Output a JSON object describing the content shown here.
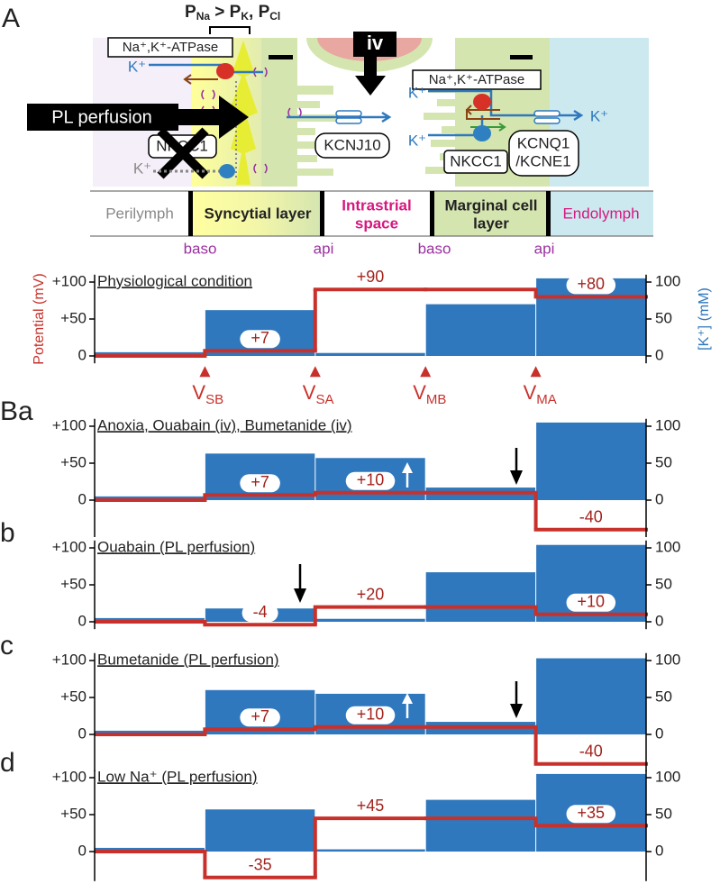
{
  "diagram": {
    "panel_label": "A",
    "permeability": [
      "P",
      "Na",
      " > P",
      "K",
      ", P",
      "Cl"
    ],
    "left_atpase": "Na⁺,K⁺-ATPase",
    "left_k": "K⁺",
    "pl_perfusion": "PL perfusion",
    "left_nkcc1": "NKCC1",
    "left_k_nkcc1": "K⁺",
    "iv": "iv",
    "kcnj10": "KCNJ10",
    "right_atpase": "Na⁺,K⁺-ATPase",
    "right_k_atpase": "K⁺",
    "right_k_nkcc1": "K⁺",
    "right_nkcc1": "NKCC1",
    "kcnq1": [
      "KCNQ1",
      "/KCNE1"
    ],
    "right_k_out": "K⁺",
    "compartments": [
      [
        "Perilymph"
      ],
      [
        "Syncytial layer"
      ],
      [
        "Intrastrial",
        "space"
      ],
      [
        "Marginal cell",
        "layer"
      ],
      [
        "Endolymph"
      ]
    ],
    "membranes": [
      "baso",
      "api",
      "baso",
      "api"
    ]
  },
  "chart_data": [
    {
      "type": "combo",
      "title": "Physiological condition",
      "ylabel": "Potential (mV)",
      "y2label": "[K⁺] (mM)",
      "ylim": [
        -10,
        110
      ],
      "yticks": [
        0,
        {
          "value": 50,
          "label": "+50"
        },
        {
          "value": 100,
          "label": "+100"
        }
      ],
      "y2lim": [
        -10,
        110
      ],
      "y2ticks": [
        0,
        50,
        100
      ],
      "markers": [
        [
          "V",
          "SB"
        ],
        [
          "V",
          "SA"
        ],
        [
          "V",
          "MB"
        ],
        [
          "V",
          "MA"
        ]
      ],
      "series": [
        {
          "type": "bar",
          "axis": "y2",
          "color": "#2f78bd",
          "values": [
            5,
            62,
            4,
            70,
            105
          ]
        },
        {
          "type": "step",
          "color": "#c8312b",
          "values": [
            0,
            7,
            90,
            90,
            80
          ],
          "value_labels": [
            null,
            "+7",
            "+90",
            null,
            "+80"
          ]
        }
      ]
    },
    {
      "type": "combo",
      "panel_label": "Ba",
      "title": "Anoxia, Ouabain (iv), Bumetanide (iv)",
      "ylim": [
        -50,
        110
      ],
      "yticks": [
        0,
        {
          "value": 50,
          "label": "+50"
        },
        {
          "value": 100,
          "label": "+100"
        }
      ],
      "y2lim": [
        -50,
        110
      ],
      "y2ticks": [
        0,
        50,
        100
      ],
      "series": [
        {
          "type": "bar",
          "axis": "y2",
          "color": "#2f78bd",
          "values": [
            5,
            63,
            57,
            17,
            105
          ]
        },
        {
          "type": "step",
          "color": "#c8312b",
          "values": [
            0,
            7,
            10,
            10,
            -40
          ],
          "value_labels": [
            null,
            "+7",
            "+10",
            null,
            "-40"
          ]
        }
      ]
    },
    {
      "type": "combo",
      "panel_label": "b",
      "title": "Ouabain (PL perfusion)",
      "ylim": [
        -10,
        110
      ],
      "yticks": [
        0,
        {
          "value": 50,
          "label": "+50"
        },
        {
          "value": 100,
          "label": "+100"
        }
      ],
      "y2lim": [
        -10,
        110
      ],
      "y2ticks": [
        0,
        50,
        100
      ],
      "series": [
        {
          "type": "bar",
          "axis": "y2",
          "color": "#2f78bd",
          "values": [
            5,
            18,
            4,
            67,
            104
          ]
        },
        {
          "type": "step",
          "color": "#c8312b",
          "values": [
            0,
            -4,
            20,
            20,
            10
          ],
          "value_labels": [
            null,
            "-4",
            "+20",
            null,
            "+10"
          ]
        }
      ]
    },
    {
      "type": "combo",
      "panel_label": "c",
      "title": "Bumetanide (PL perfusion)",
      "ylim": [
        -50,
        110
      ],
      "yticks": [
        0,
        {
          "value": 50,
          "label": "+50"
        },
        {
          "value": 100,
          "label": "+100"
        }
      ],
      "y2lim": [
        -50,
        110
      ],
      "y2ticks": [
        0,
        50,
        100
      ],
      "series": [
        {
          "type": "bar",
          "axis": "y2",
          "color": "#2f78bd",
          "values": [
            5,
            60,
            55,
            17,
            103
          ]
        },
        {
          "type": "step",
          "color": "#c8312b",
          "values": [
            0,
            7,
            10,
            10,
            -40
          ],
          "value_labels": [
            null,
            "+7",
            "+10",
            null,
            "-40"
          ]
        }
      ]
    },
    {
      "type": "combo",
      "panel_label": "d",
      "title": "Low Na⁺ (PL perfusion)",
      "ylim": [
        -40,
        110
      ],
      "yticks": [
        0,
        {
          "value": 50,
          "label": "+50"
        },
        {
          "value": 100,
          "label": "+100"
        }
      ],
      "y2lim": [
        -40,
        110
      ],
      "y2ticks": [
        0,
        50,
        100
      ],
      "series": [
        {
          "type": "bar",
          "axis": "y2",
          "color": "#2f78bd",
          "values": [
            5,
            57,
            3,
            70,
            105
          ]
        },
        {
          "type": "step",
          "color": "#c8312b",
          "values": [
            0,
            -35,
            45,
            45,
            35
          ],
          "value_labels": [
            null,
            "-35",
            "+45",
            null,
            "+35"
          ]
        }
      ]
    }
  ]
}
